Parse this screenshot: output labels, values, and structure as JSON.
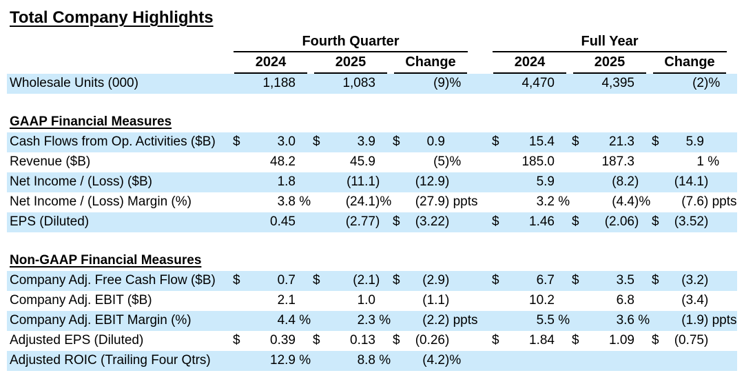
{
  "title": "Total Company Highlights",
  "colors": {
    "stripe": "#cdeafb",
    "text": "#000000"
  },
  "table": {
    "groups": [
      {
        "label": "Fourth Quarter",
        "columns": [
          "2024",
          "2025",
          "Change"
        ]
      },
      {
        "label": "Full Year",
        "columns": [
          "2024",
          "2025",
          "Change"
        ]
      }
    ],
    "sections": [
      {
        "header": "",
        "rows": [
          {
            "label": "Wholesale Units (000)",
            "cells": [
              "1,188",
              "1,083",
              "(9)%",
              "4,470",
              "4,395",
              "(2)%"
            ]
          }
        ]
      },
      {
        "header": "GAAP Financial Measures",
        "rows": [
          {
            "label": "Cash Flows from Op. Activities ($B)",
            "cells": [
              "$ 3.0",
              "$ 3.9",
              "$ 0.9",
              "$ 15.4",
              "$ 21.3",
              "$ 5.9"
            ]
          },
          {
            "label": "Revenue ($B)",
            "cells": [
              "48.2",
              "45.9",
              "(5)%",
              "185.0",
              "187.3",
              "1 %"
            ]
          },
          {
            "label": "Net Income / (Loss) ($B)",
            "cells": [
              "1.8",
              "(11.1)",
              "(12.9)",
              "5.9",
              "(8.2)",
              "(14.1)"
            ]
          },
          {
            "label": "Net Income / (Loss) Margin (%)",
            "cells": [
              "3.8 %",
              "(24.1)%",
              "(27.9) ppts",
              "3.2 %",
              "(4.4)%",
              "(7.6) ppts"
            ]
          },
          {
            "label": "EPS (Diluted)",
            "cells": [
              "0.45",
              "(2.77)",
              "$ (3.22)",
              "$ 1.46",
              "$ (2.06)",
              "$ (3.52)"
            ]
          }
        ]
      },
      {
        "header": "Non-GAAP Financial Measures",
        "rows": [
          {
            "label": "Company Adj. Free Cash Flow ($B)",
            "cells": [
              "$ 0.7",
              "$ (2.1)",
              "$ (2.9)",
              "$ 6.7",
              "$ 3.5",
              "$ (3.2)"
            ]
          },
          {
            "label": "Company Adj. EBIT ($B)",
            "cells": [
              "2.1",
              "1.0",
              "(1.1)",
              "10.2",
              "6.8",
              "(3.4)"
            ]
          },
          {
            "label": "Company Adj. EBIT Margin (%)",
            "cells": [
              "4.4 %",
              "2.3 %",
              "(2.2) ppts",
              "5.5 %",
              "3.6 %",
              "(1.9) ppts"
            ]
          },
          {
            "label": "Adjusted EPS (Diluted)",
            "cells": [
              "$ 0.39",
              "$ 0.13",
              "$ (0.26)",
              "$ 1.84",
              "$ 1.09",
              "$ (0.75)"
            ]
          },
          {
            "label": "Adjusted ROIC (Trailing Four Qtrs)",
            "cells": [
              "12.9 %",
              "8.8 %",
              "(4.2)%",
              "",
              "",
              ""
            ]
          }
        ]
      }
    ]
  }
}
